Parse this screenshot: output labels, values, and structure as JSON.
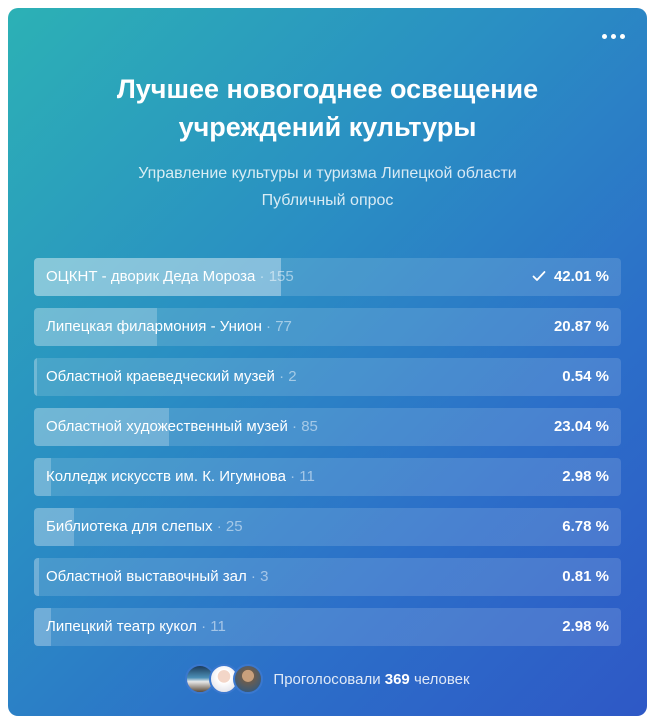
{
  "poll": {
    "title_line1": "Лучшее новогоднее освещение",
    "title_line2": "учреждений культуры",
    "author": "Управление культуры и туризма Липецкой области",
    "poll_type": "Публичный опрос",
    "options": [
      {
        "label": "ОЦКНТ - дворик Деда Мороза",
        "votes": "· 155",
        "percent": "42.01 %",
        "fraction": 0.4201,
        "selected": true
      },
      {
        "label": "Липецкая филармония - Унион",
        "votes": "· 77",
        "percent": "20.87 %",
        "fraction": 0.2087,
        "selected": false
      },
      {
        "label": "Областной краеведческий музей",
        "votes": "· 2",
        "percent": "0.54 %",
        "fraction": 0.0054,
        "selected": false
      },
      {
        "label": "Областной художественный музей",
        "votes": "· 85",
        "percent": "23.04 %",
        "fraction": 0.2304,
        "selected": false
      },
      {
        "label": "Колледж искусств им. К. Игумнова",
        "votes": "· 11",
        "percent": "2.98 %",
        "fraction": 0.0298,
        "selected": false
      },
      {
        "label": "Библиотека для слепых",
        "votes": "· 25",
        "percent": "6.78 %",
        "fraction": 0.0678,
        "selected": false
      },
      {
        "label": "Областной выставочный зал",
        "votes": "· 3",
        "percent": "0.81 %",
        "fraction": 0.0081,
        "selected": false
      },
      {
        "label": "Липецкий театр кукол",
        "votes": "· 11",
        "percent": "2.98 %",
        "fraction": 0.0298,
        "selected": false
      }
    ],
    "footer": {
      "voted_prefix": "Проголосовали",
      "voted_count": "369",
      "voted_suffix": "человек"
    },
    "icons": {
      "menu": "more-horizontal-icon",
      "selected": "checkmark-icon"
    }
  }
}
